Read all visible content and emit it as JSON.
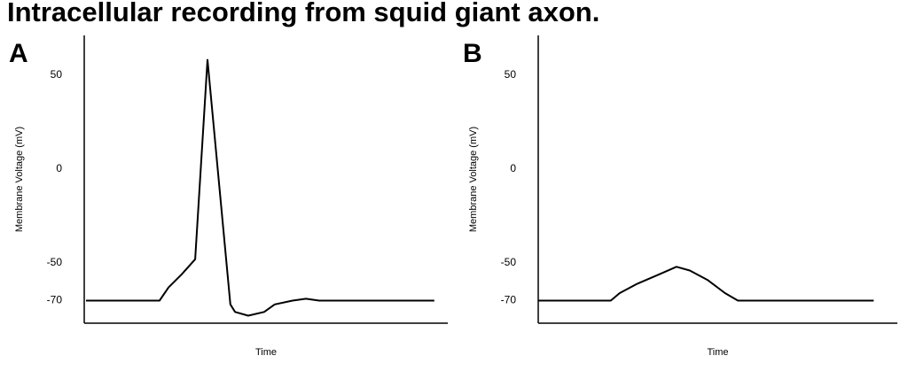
{
  "title": "Intracellular recording from squid giant axon.",
  "chart_data": [
    {
      "type": "line",
      "panel_label": "A",
      "ylabel": "Membrane Voltage (mV)",
      "xlabel": "Time",
      "x": [
        0.5,
        20.7,
        23.2,
        26.8,
        30.5,
        33.9,
        40.2,
        41.5,
        45.1,
        49.5,
        52.4,
        57.3,
        61,
        64.6,
        96.3
      ],
      "values": [
        -70,
        -70,
        -63,
        -56,
        -48,
        58,
        -72,
        -76,
        -78,
        -76,
        -72,
        -70,
        -69,
        -70,
        -70
      ],
      "color": "#000000",
      "xlim": [
        0,
        100
      ],
      "ylim": [
        -82,
        71
      ],
      "yticks": [
        -70,
        -50,
        0,
        50
      ],
      "grid": false
    },
    {
      "type": "line",
      "panel_label": "B",
      "ylabel": "Membrane Voltage (mV)",
      "xlabel": "Time",
      "x": [
        0,
        20.2,
        22.7,
        27.6,
        33.7,
        38.5,
        42.2,
        47.1,
        52,
        55.6,
        93.4
      ],
      "values": [
        -70,
        -70,
        -66,
        -61,
        -56,
        -52,
        -54,
        -59,
        -66,
        -70,
        -70
      ],
      "color": "#000000",
      "xlim": [
        0,
        100
      ],
      "ylim": [
        -82,
        71
      ],
      "yticks": [
        -70,
        -50,
        0,
        50
      ],
      "grid": false
    }
  ]
}
